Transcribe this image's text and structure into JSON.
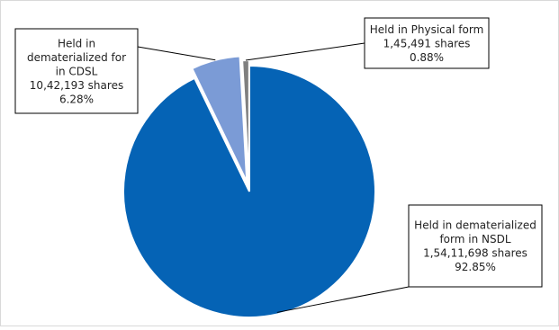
{
  "chart_data": {
    "type": "pie",
    "title": "",
    "slices": [
      {
        "key": "nsdl",
        "lines": [
          "Held in dematerialized",
          "form in NSDL",
          "1,54,11,698 shares",
          "92.85%"
        ],
        "shares": 15411698,
        "percent": 92.85,
        "color": "#0563B5",
        "exploded": false
      },
      {
        "key": "cdsl",
        "lines": [
          "Held in",
          "dematerialized for",
          "in CDSL",
          "10,42,193 shares",
          "6.28%"
        ],
        "shares": 1042193,
        "percent": 6.28,
        "color": "#7B9BD6",
        "exploded": true
      },
      {
        "key": "physical",
        "lines": [
          "Held in Physical form",
          "1,45,491 shares",
          "0.88%"
        ],
        "shares": 145491,
        "percent": 0.88,
        "color": "#7F7F7F",
        "exploded": true
      }
    ],
    "start_angle_deg": 0,
    "direction": "clockwise",
    "legend": "none"
  }
}
